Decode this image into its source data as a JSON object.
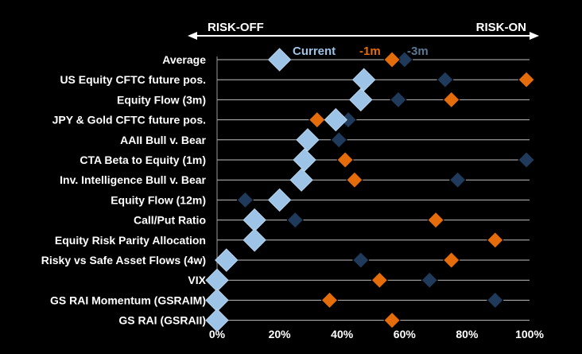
{
  "chart_data": {
    "type": "scatter",
    "orientation": "horizontal-dot-plot",
    "header": {
      "left_label": "RISK-OFF",
      "right_label": "RISK-ON"
    },
    "xlim": [
      0,
      100
    ],
    "x_ticks": [
      0,
      20,
      40,
      60,
      80,
      100
    ],
    "x_tick_labels": [
      "0%",
      "20%",
      "40%",
      "60%",
      "80%",
      "100%"
    ],
    "grid": true,
    "legend_position": "top",
    "categories": [
      "Average",
      "US Equity CFTC future pos.",
      "Equity Flow (3m)",
      "JPY & Gold CFTC future pos.",
      "AAII Bull v. Bear",
      "CTA Beta to Equity (1m)",
      "Inv. Intelligence Bull v. Bear",
      "Equity Flow (12m)",
      "Call/Put Ratio",
      "Equity Risk Parity Allocation",
      "Risky vs Safe Asset Flows (4w)",
      "VIX",
      "GS RAI Momentum (GSRAIM)",
      "GS RAI (GSRAII)"
    ],
    "series": [
      {
        "name": "-3m",
        "color": "#1f3a5a",
        "values": [
          60,
          73,
          58,
          42,
          39,
          99,
          77,
          9,
          25,
          null,
          46,
          68,
          89,
          null
        ]
      },
      {
        "name": "-1m",
        "color": "#e46c0a",
        "values": [
          56,
          99,
          75,
          32,
          29,
          41,
          44,
          20,
          70,
          89,
          75,
          52,
          36,
          56
        ]
      },
      {
        "name": "Current",
        "color": "#9dc3e6",
        "values": [
          20,
          47,
          46,
          38,
          29,
          28,
          27,
          20,
          12,
          12,
          3,
          0,
          0,
          0
        ]
      }
    ]
  }
}
